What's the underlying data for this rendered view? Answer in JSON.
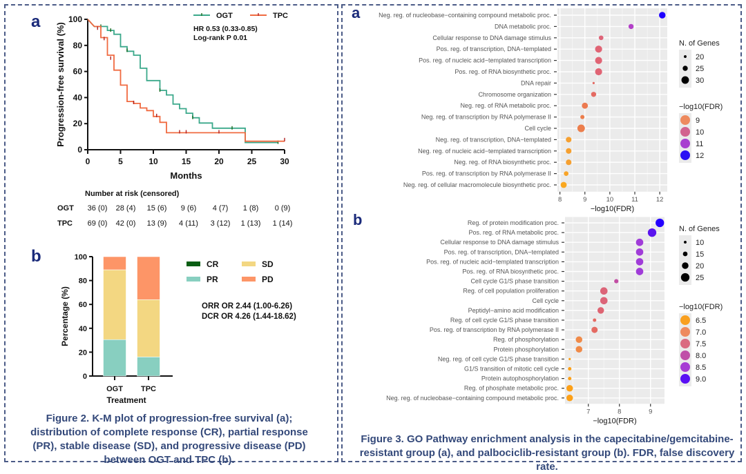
{
  "figure2": {
    "caption": "Figure 2. K-M plot of progression-free survival (a); distribution of complete response (CR), partial response (PR), stable disease (SD), and progressive disease (PD) between OGT and TPC (b).",
    "panel_a_label": "a",
    "panel_b_label": "b",
    "risk_table": {
      "title": "Number at risk (censored)",
      "rows": [
        {
          "label": "OGT",
          "values": [
            "36 (0)",
            "28 (4)",
            "15 (6)",
            "9 (6)",
            "4 (7)",
            "1 (8)",
            "0 (9)"
          ]
        },
        {
          "label": "TPC",
          "values": [
            "69 (0)",
            "42 (0)",
            "13 (9)",
            "4 (11)",
            "3 (12)",
            "1 (13)",
            "1 (14)"
          ]
        }
      ]
    }
  },
  "figure3": {
    "caption": "Figure 3. GO Pathway enrichment analysis in the capecitabine/gemcitabine-resistant group (a), and palbociclib-resistant group (b). FDR, false discovery rate.",
    "panel_a_label": "a",
    "panel_b_label": "b"
  },
  "chart_data": [
    {
      "id": "km",
      "type": "line",
      "title": "",
      "xlabel": "Months",
      "ylabel": "Progression-free survival (%)",
      "xlim": [
        0,
        30
      ],
      "ylim": [
        0,
        100
      ],
      "xticks": [
        0,
        5,
        10,
        15,
        20,
        25,
        30
      ],
      "yticks": [
        0,
        20,
        40,
        60,
        80,
        100
      ],
      "annotations": [
        "HR 0.53 (0.33-0.85)",
        "Log-rank P 0.01"
      ],
      "legend": "top-right",
      "series": [
        {
          "name": "OGT",
          "color": "#3aa88a",
          "steps": [
            [
              0,
              100
            ],
            [
              1,
              94.5
            ],
            [
              3,
              94.5
            ],
            [
              3,
              91.5
            ],
            [
              4,
              91.5
            ],
            [
              4,
              88.5
            ],
            [
              5,
              88.5
            ],
            [
              5,
              79
            ],
            [
              6,
              79
            ],
            [
              6,
              75.5
            ],
            [
              7,
              75.5
            ],
            [
              7,
              72.5
            ],
            [
              8,
              72.5
            ],
            [
              8,
              62.5
            ],
            [
              9,
              62.5
            ],
            [
              9,
              53
            ],
            [
              11,
              53
            ],
            [
              11,
              45.5
            ],
            [
              12,
              45.5
            ],
            [
              12,
              42
            ],
            [
              13,
              42
            ],
            [
              13,
              35
            ],
            [
              14,
              35
            ],
            [
              14,
              31.5
            ],
            [
              15,
              31.5
            ],
            [
              15,
              28
            ],
            [
              16,
              28
            ],
            [
              16,
              24.5
            ],
            [
              17,
              24.5
            ],
            [
              17,
              20.5
            ],
            [
              19,
              20.5
            ],
            [
              19,
              16.5
            ],
            [
              24,
              16.5
            ],
            [
              24,
              5.5
            ],
            [
              29,
              5.5
            ]
          ],
          "censor": [
            [
              2,
              94.5
            ],
            [
              3.5,
              91.5
            ],
            [
              6,
              76
            ],
            [
              11,
              45.5
            ],
            [
              16,
              24.5
            ],
            [
              22,
              16.5
            ],
            [
              29,
              5.5
            ]
          ]
        },
        {
          "name": "TPC",
          "color": "#f06a40",
          "steps": [
            [
              0,
              100
            ],
            [
              1,
              94.5
            ],
            [
              2,
              94.5
            ],
            [
              2,
              86
            ],
            [
              3,
              86
            ],
            [
              3,
              72.5
            ],
            [
              4,
              72.5
            ],
            [
              4,
              61
            ],
            [
              5,
              61
            ],
            [
              5,
              49.5
            ],
            [
              6,
              49.5
            ],
            [
              6,
              37
            ],
            [
              7,
              37
            ],
            [
              7,
              35.5
            ],
            [
              8,
              35.5
            ],
            [
              8,
              32
            ],
            [
              9,
              32
            ],
            [
              9,
              30
            ],
            [
              10,
              30
            ],
            [
              10,
              25.5
            ],
            [
              11,
              25.5
            ],
            [
              11,
              21
            ],
            [
              12,
              21
            ],
            [
              12,
              13
            ],
            [
              24,
              13
            ],
            [
              24,
              6.5
            ],
            [
              30,
              6.5
            ]
          ],
          "censor": [
            [
              1.5,
              93
            ],
            [
              2.5,
              85
            ],
            [
              3.5,
              70
            ],
            [
              7,
              36
            ],
            [
              10.5,
              26
            ],
            [
              14,
              13.5
            ],
            [
              15,
              13.5
            ],
            [
              20,
              13.5
            ],
            [
              30,
              7.5
            ]
          ]
        }
      ]
    },
    {
      "id": "response",
      "type": "bar",
      "stacked": true,
      "xlabel": "Treatment",
      "ylabel": "Percentage (%)",
      "ylim": [
        0,
        100
      ],
      "yticks": [
        0,
        20,
        40,
        60,
        80,
        100
      ],
      "categories": [
        "OGT",
        "TPC"
      ],
      "series": [
        {
          "name": "CR",
          "color": "#0a5e14",
          "values": [
            0,
            0
          ]
        },
        {
          "name": "PR",
          "color": "#88cfc0",
          "values": [
            30.5,
            16
          ]
        },
        {
          "name": "SD",
          "color": "#f3d782",
          "values": [
            58.5,
            48
          ]
        },
        {
          "name": "PD",
          "color": "#fd9567",
          "values": [
            11,
            36
          ]
        }
      ],
      "legend": "right",
      "annotations": [
        "ORR OR 2.44 (1.00-6.26)",
        "DCR OR 4.26 (1.44-18.62)"
      ]
    },
    {
      "id": "go_a",
      "type": "scatter",
      "xlabel": "−log10(FDR)",
      "xlim": [
        7.9,
        12.3
      ],
      "xticks": [
        8,
        9,
        10,
        11,
        12
      ],
      "size_legend_title": "N. of Genes",
      "size_legend": [
        20,
        25,
        30
      ],
      "color_legend_title": "−log10(FDR)",
      "color_legend": [
        {
          "value": 9,
          "color": "#ee8a5e"
        },
        {
          "value": 10,
          "color": "#d2628f"
        },
        {
          "value": 11,
          "color": "#a83fd0"
        },
        {
          "value": 12,
          "color": "#2a10f4"
        }
      ],
      "points": [
        {
          "term": "Neg. reg. of nucleobase−containing compound metabolic proc.",
          "x": 12.1,
          "genes": 28,
          "color": "#1e00ff"
        },
        {
          "term": "DNA metabolic proc.",
          "x": 10.85,
          "genes": 25,
          "color": "#b340c8"
        },
        {
          "term": "Cellular response to DNA damage stimulus",
          "x": 9.65,
          "genes": 24,
          "color": "#de6478"
        },
        {
          "term": "Pos. reg. of transcription, DNA−templated",
          "x": 9.55,
          "genes": 29,
          "color": "#e06474"
        },
        {
          "term": "Pos. reg. of nucleic acid−templated transcription",
          "x": 9.55,
          "genes": 29,
          "color": "#e06474"
        },
        {
          "term": "Pos. reg. of RNA biosynthetic proc.",
          "x": 9.55,
          "genes": 29,
          "color": "#e06474"
        },
        {
          "term": "DNA repair",
          "x": 9.35,
          "genes": 19,
          "color": "#e46a62"
        },
        {
          "term": "Chromosome organization",
          "x": 9.35,
          "genes": 25,
          "color": "#e46a62"
        },
        {
          "term": "Neg. reg. of RNA metabolic proc.",
          "x": 9.0,
          "genes": 27,
          "color": "#ec7a50"
        },
        {
          "term": "Neg. reg. of transcription by RNA polymerase II",
          "x": 8.9,
          "genes": 23,
          "color": "#ec7e4c"
        },
        {
          "term": "Cell cycle",
          "x": 8.85,
          "genes": 30,
          "color": "#ec7e4c"
        },
        {
          "term": "Neg. reg. of transcription, DNA−templated",
          "x": 8.35,
          "genes": 26,
          "color": "#f6a030"
        },
        {
          "term": "Neg. reg. of nucleic acid−templated transcription",
          "x": 8.35,
          "genes": 26,
          "color": "#f6a030"
        },
        {
          "term": "Neg. reg. of RNA biosynthetic proc.",
          "x": 8.35,
          "genes": 26,
          "color": "#f6a030"
        },
        {
          "term": "Pos. reg. of transcription by RNA polymerase II",
          "x": 8.25,
          "genes": 24,
          "color": "#f8a428"
        },
        {
          "term": "Neg. reg. of cellular macromolecule biosynthetic proc.",
          "x": 8.15,
          "genes": 27,
          "color": "#faa820"
        }
      ]
    },
    {
      "id": "go_b",
      "type": "scatter",
      "xlabel": "−log10(FDR)",
      "xlim": [
        6.25,
        9.45
      ],
      "xticks": [
        7,
        8,
        9
      ],
      "size_legend_title": "N. of Genes",
      "size_legend": [
        10,
        15,
        20,
        25
      ],
      "color_legend_title": "−log10(FDR)",
      "color_legend": [
        {
          "value": "6.5",
          "color": "#f9a020"
        },
        {
          "value": "7.0",
          "color": "#ee8a5e"
        },
        {
          "value": "7.5",
          "color": "#da6a80"
        },
        {
          "value": "8.0",
          "color": "#c050a8"
        },
        {
          "value": "8.5",
          "color": "#a63cd4"
        },
        {
          "value": "9.0",
          "color": "#5a10f4"
        }
      ],
      "points": [
        {
          "term": "Reg. of protein modification proc.",
          "x": 9.3,
          "genes": 25,
          "color": "#2400ff"
        },
        {
          "term": "Pos. reg. of RNA metabolic proc.",
          "x": 9.05,
          "genes": 25,
          "color": "#5a14ee"
        },
        {
          "term": "Cellular response to DNA damage stimulus",
          "x": 8.65,
          "genes": 22,
          "color": "#a03cd8"
        },
        {
          "term": "Pos. reg. of transcription, DNA−templated",
          "x": 8.65,
          "genes": 22,
          "color": "#a03cd8"
        },
        {
          "term": "Pos. reg. of nucleic acid−templated transcription",
          "x": 8.65,
          "genes": 22,
          "color": "#a03cd8"
        },
        {
          "term": "Pos. reg. of RNA biosynthetic proc.",
          "x": 8.65,
          "genes": 22,
          "color": "#a03cd8"
        },
        {
          "term": "Cell cycle G1/S phase transition",
          "x": 7.9,
          "genes": 14,
          "color": "#c24ea4"
        },
        {
          "term": "Reg. of cell population proliferation",
          "x": 7.5,
          "genes": 22,
          "color": "#dc6478"
        },
        {
          "term": "Cell cycle",
          "x": 7.5,
          "genes": 22,
          "color": "#dc6478"
        },
        {
          "term": "Peptidyl−amino acid modification",
          "x": 7.4,
          "genes": 20,
          "color": "#de6472"
        },
        {
          "term": "Reg. of cell cycle G1/S phase transition",
          "x": 7.2,
          "genes": 12,
          "color": "#e46a62"
        },
        {
          "term": "Pos. reg. of transcription by RNA polymerase II",
          "x": 7.2,
          "genes": 19,
          "color": "#e46a62"
        },
        {
          "term": "Reg. of phosphorylation",
          "x": 6.7,
          "genes": 20,
          "color": "#f08a48"
        },
        {
          "term": "Protein phosphorylation",
          "x": 6.7,
          "genes": 20,
          "color": "#f08a48"
        },
        {
          "term": "Neg. reg. of cell cycle G1/S phase transition",
          "x": 6.4,
          "genes": 8,
          "color": "#fca018"
        },
        {
          "term": "G1/S transition of mitotic cell cycle",
          "x": 6.4,
          "genes": 12,
          "color": "#fca018"
        },
        {
          "term": "Protein autophosphorylation",
          "x": 6.4,
          "genes": 12,
          "color": "#fca018"
        },
        {
          "term": "Reg. of phosphate metabolic proc.",
          "x": 6.4,
          "genes": 20,
          "color": "#fca018"
        },
        {
          "term": "Neg. reg. of nucleobase−containing compound metabolic proc.",
          "x": 6.4,
          "genes": 20,
          "color": "#fca018"
        }
      ]
    }
  ]
}
